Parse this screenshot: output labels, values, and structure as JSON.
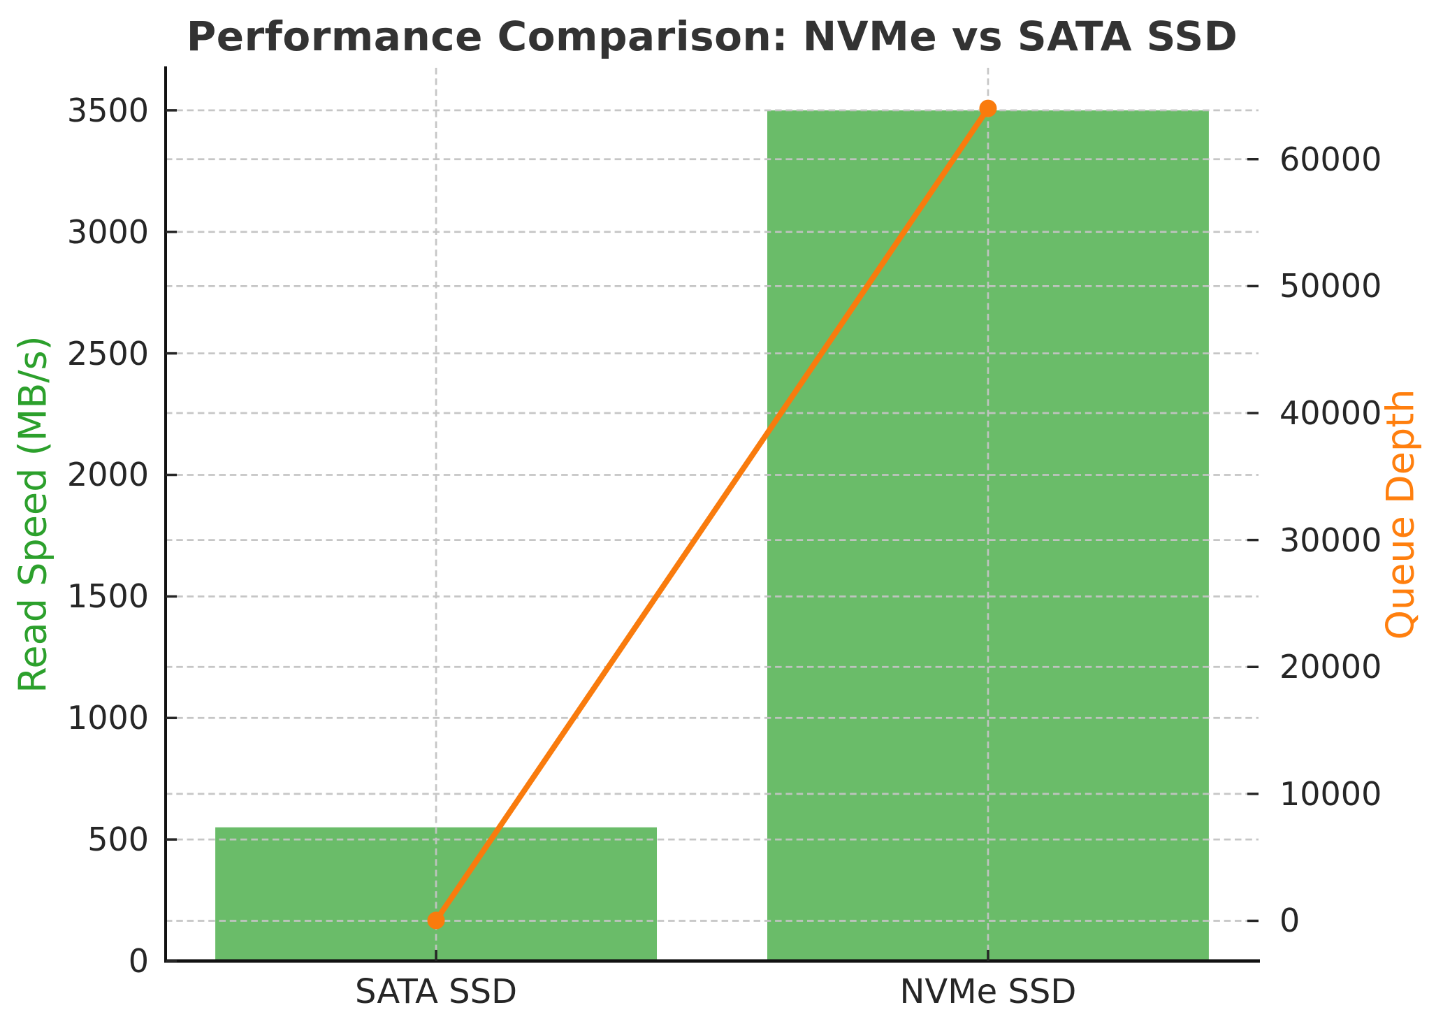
{
  "chart_data": {
    "type": "bar",
    "subtype": "dual-axis bar+line combo",
    "title": "Performance Comparison: NVMe vs SATA SSD",
    "categories": [
      "SATA SSD",
      "NVMe SSD"
    ],
    "series": [
      {
        "name": "Read Speed (MB/s)",
        "type": "bar",
        "axis": "left",
        "color": "#6abc69",
        "values": [
          550,
          3500
        ]
      },
      {
        "name": "Queue Depth",
        "type": "line",
        "axis": "right",
        "color": "#f97b0d",
        "marker": "circle",
        "values": [
          32,
          64000
        ]
      }
    ],
    "left_axis": {
      "label": "Read Speed (MB/s)",
      "label_color": "#2ca02c",
      "ticks": [
        0,
        500,
        1000,
        1500,
        2000,
        2500,
        3000,
        3500
      ],
      "range": [
        0,
        3675
      ]
    },
    "right_axis": {
      "label": "Queue Depth",
      "label_color": "#ff7f0e",
      "ticks": [
        0,
        10000,
        20000,
        30000,
        40000,
        50000,
        60000
      ],
      "range": [
        -3166,
        67198
      ]
    },
    "x_axis": {
      "tick_labels": [
        "SATA SSD",
        "NVMe SSD"
      ],
      "category_positions": [
        0,
        1
      ],
      "range": [
        -0.49,
        1.49
      ],
      "bar_width_units": 0.8
    },
    "grid": {
      "show": true,
      "linestyle": "dashed",
      "color": "#c3c3c3",
      "vertical_at_categories": true
    },
    "legend": "none",
    "background": "#ffffff",
    "title_color": "#333333",
    "tick_color": "#262626",
    "spine_color": "#111111"
  }
}
